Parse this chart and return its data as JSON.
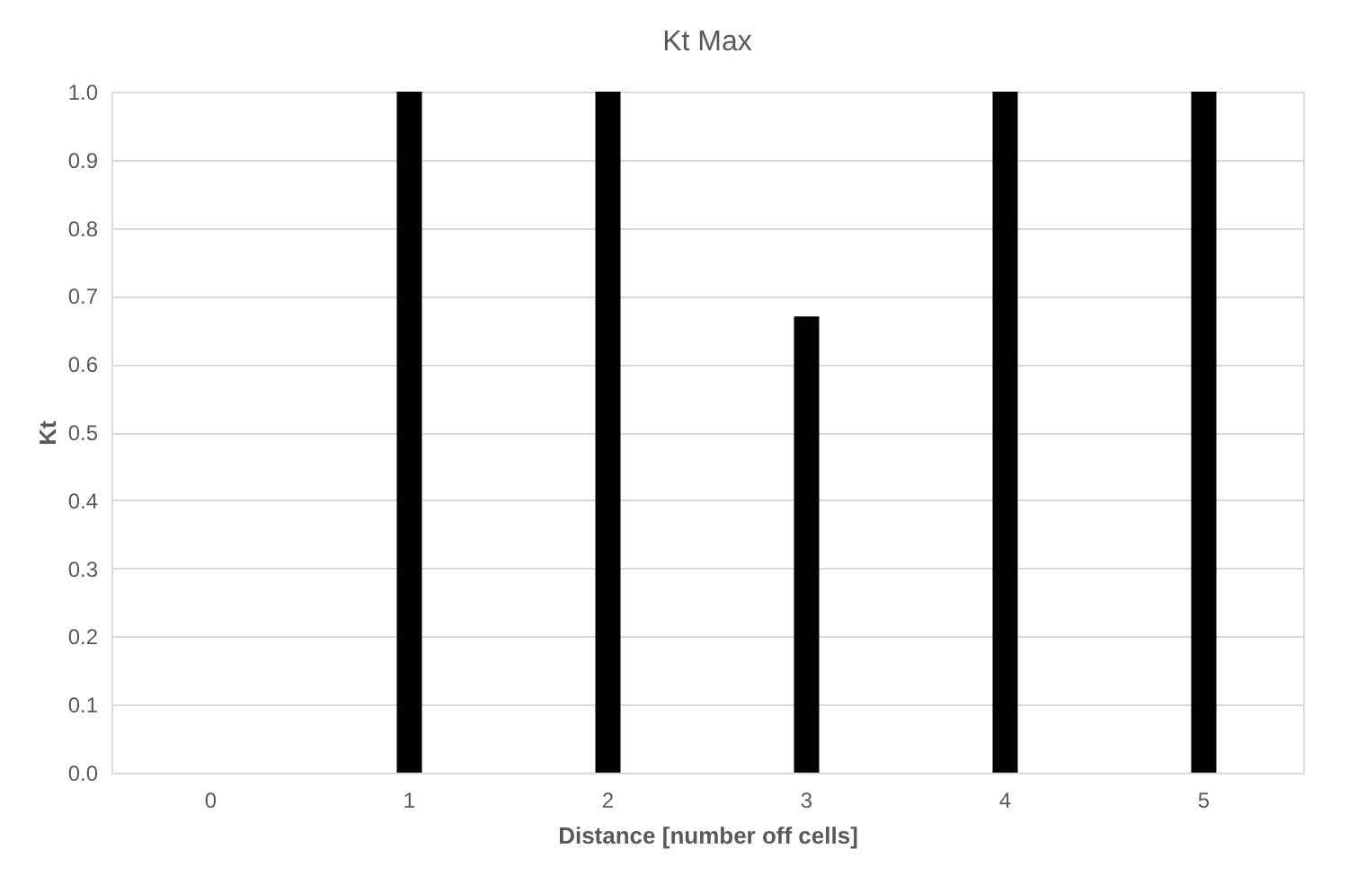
{
  "chart_data": {
    "type": "bar",
    "title": "Kt Max",
    "xlabel": "Distance [number off cells]",
    "ylabel": "Kt",
    "categories": [
      "0",
      "1",
      "2",
      "3",
      "4",
      "5"
    ],
    "values": [
      0,
      1,
      1,
      0.67,
      1,
      1
    ],
    "color": "#000000",
    "ylim": [
      0,
      1
    ],
    "yticks": [
      {
        "value": 0,
        "label": "0.0"
      },
      {
        "value": 0.1,
        "label": "0.1"
      },
      {
        "value": 0.2,
        "label": "0.2"
      },
      {
        "value": 0.3,
        "label": "0.3"
      },
      {
        "value": 0.4,
        "label": "0.4"
      },
      {
        "value": 0.5,
        "label": "0.5"
      },
      {
        "value": 0.6,
        "label": "0.6"
      },
      {
        "value": 0.7,
        "label": "0.7"
      },
      {
        "value": 0.8,
        "label": "0.8"
      },
      {
        "value": 0.9,
        "label": "0.9"
      },
      {
        "value": 1,
        "label": "1.0"
      }
    ],
    "grid": "y"
  }
}
